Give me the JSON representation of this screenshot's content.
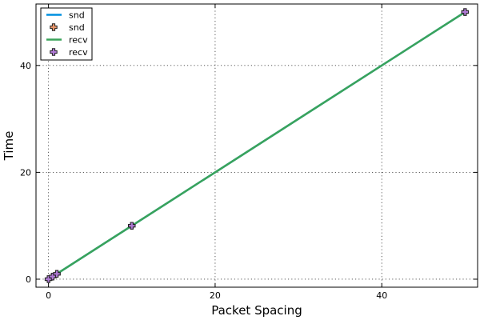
{
  "chart_data": {
    "type": "line",
    "xlabel": "Packet Spacing",
    "ylabel": "Time",
    "xlim": [
      -1.5,
      51.5
    ],
    "ylim": [
      -1.5,
      51.5
    ],
    "xticks": [
      0,
      20,
      40
    ],
    "yticks": [
      0,
      20,
      40
    ],
    "grid": true,
    "legend_position": "top-left",
    "x": [
      0,
      0.5,
      1,
      10,
      50
    ],
    "series": [
      {
        "name": "snd",
        "kind": "line",
        "color": "#0090e0",
        "values": [
          0,
          0.5,
          1,
          10,
          50
        ]
      },
      {
        "name": "snd",
        "kind": "scatter",
        "marker": "cross",
        "color": "#e8956a",
        "values": [
          0,
          0.5,
          1,
          10,
          50
        ]
      },
      {
        "name": "recv",
        "kind": "line",
        "color": "#3aa35a",
        "values": [
          0,
          0.5,
          1,
          10,
          50
        ]
      },
      {
        "name": "recv",
        "kind": "scatter",
        "marker": "cross",
        "color": "#b07ad6",
        "values": [
          0,
          0.5,
          1,
          10,
          50
        ]
      }
    ]
  }
}
